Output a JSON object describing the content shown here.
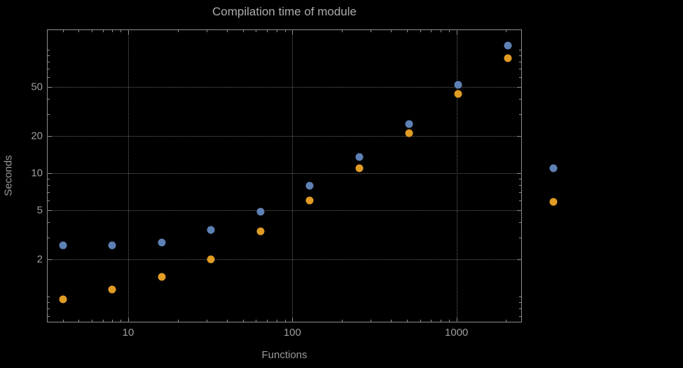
{
  "chart_data": {
    "type": "scatter",
    "title": "Compilation time of module",
    "xlabel": "Functions",
    "ylabel": "Seconds",
    "xscale": "log",
    "yscale": "log",
    "grid": true,
    "xlim": [
      3.2,
      2500
    ],
    "ylim": [
      0.62,
      146
    ],
    "x_ticks": [
      10,
      100,
      1000
    ],
    "y_ticks": [
      2,
      5,
      10,
      20,
      50
    ],
    "x": [
      4,
      8,
      16,
      32,
      64,
      128,
      256,
      512,
      1024,
      2048
    ],
    "series": [
      {
        "name": "blue",
        "color": "#5e81b5",
        "values": [
          2.6,
          2.6,
          2.75,
          3.5,
          4.9,
          7.9,
          13.5,
          25,
          52,
          108
        ]
      },
      {
        "name": "orange",
        "color": "#e19c24",
        "values": [
          0.95,
          1.15,
          1.45,
          2.0,
          3.4,
          6.0,
          11,
          21,
          44,
          85
        ]
      }
    ],
    "legend": {
      "position": "right",
      "markers": [
        "#5e81b5",
        "#e19c24"
      ]
    }
  }
}
